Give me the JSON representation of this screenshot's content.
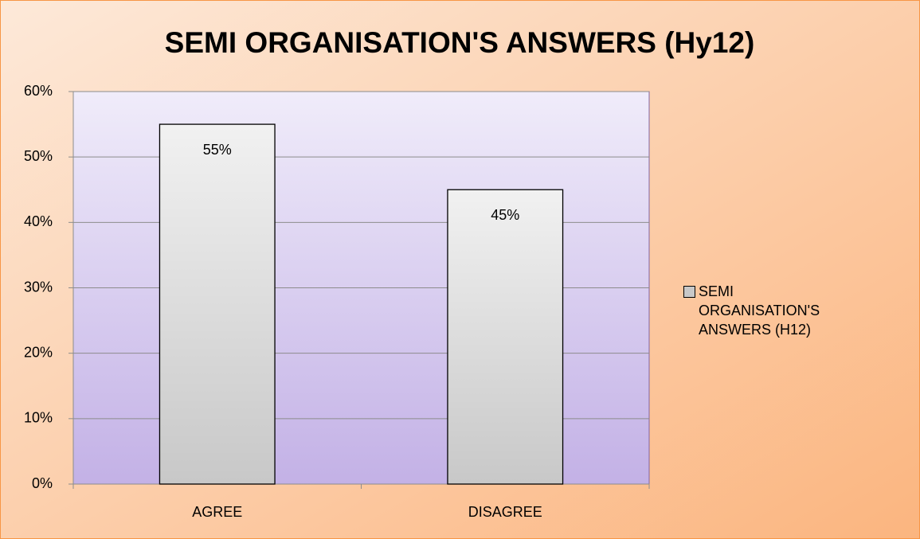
{
  "chart_data": {
    "type": "bar",
    "title": "SEMI ORGANISATION'S ANSWERS (Hy12)",
    "categories": [
      "AGREE",
      "DISAGREE"
    ],
    "series": [
      {
        "name": "SEMI ORGANISATION'S ANSWERS (H12)",
        "color": "#c8c8c8",
        "values": [
          55,
          45
        ],
        "value_labels": [
          "55%",
          "45%"
        ]
      }
    ],
    "ylim": [
      0,
      60
    ],
    "yticks": [
      {
        "value": 0,
        "label": "0%"
      },
      {
        "value": 10,
        "label": "10%"
      },
      {
        "value": 20,
        "label": "20%"
      },
      {
        "value": 30,
        "label": "30%"
      },
      {
        "value": 40,
        "label": "40%"
      },
      {
        "value": 50,
        "label": "50%"
      },
      {
        "value": 60,
        "label": "60%"
      }
    ],
    "grid": true,
    "legend": "right"
  }
}
